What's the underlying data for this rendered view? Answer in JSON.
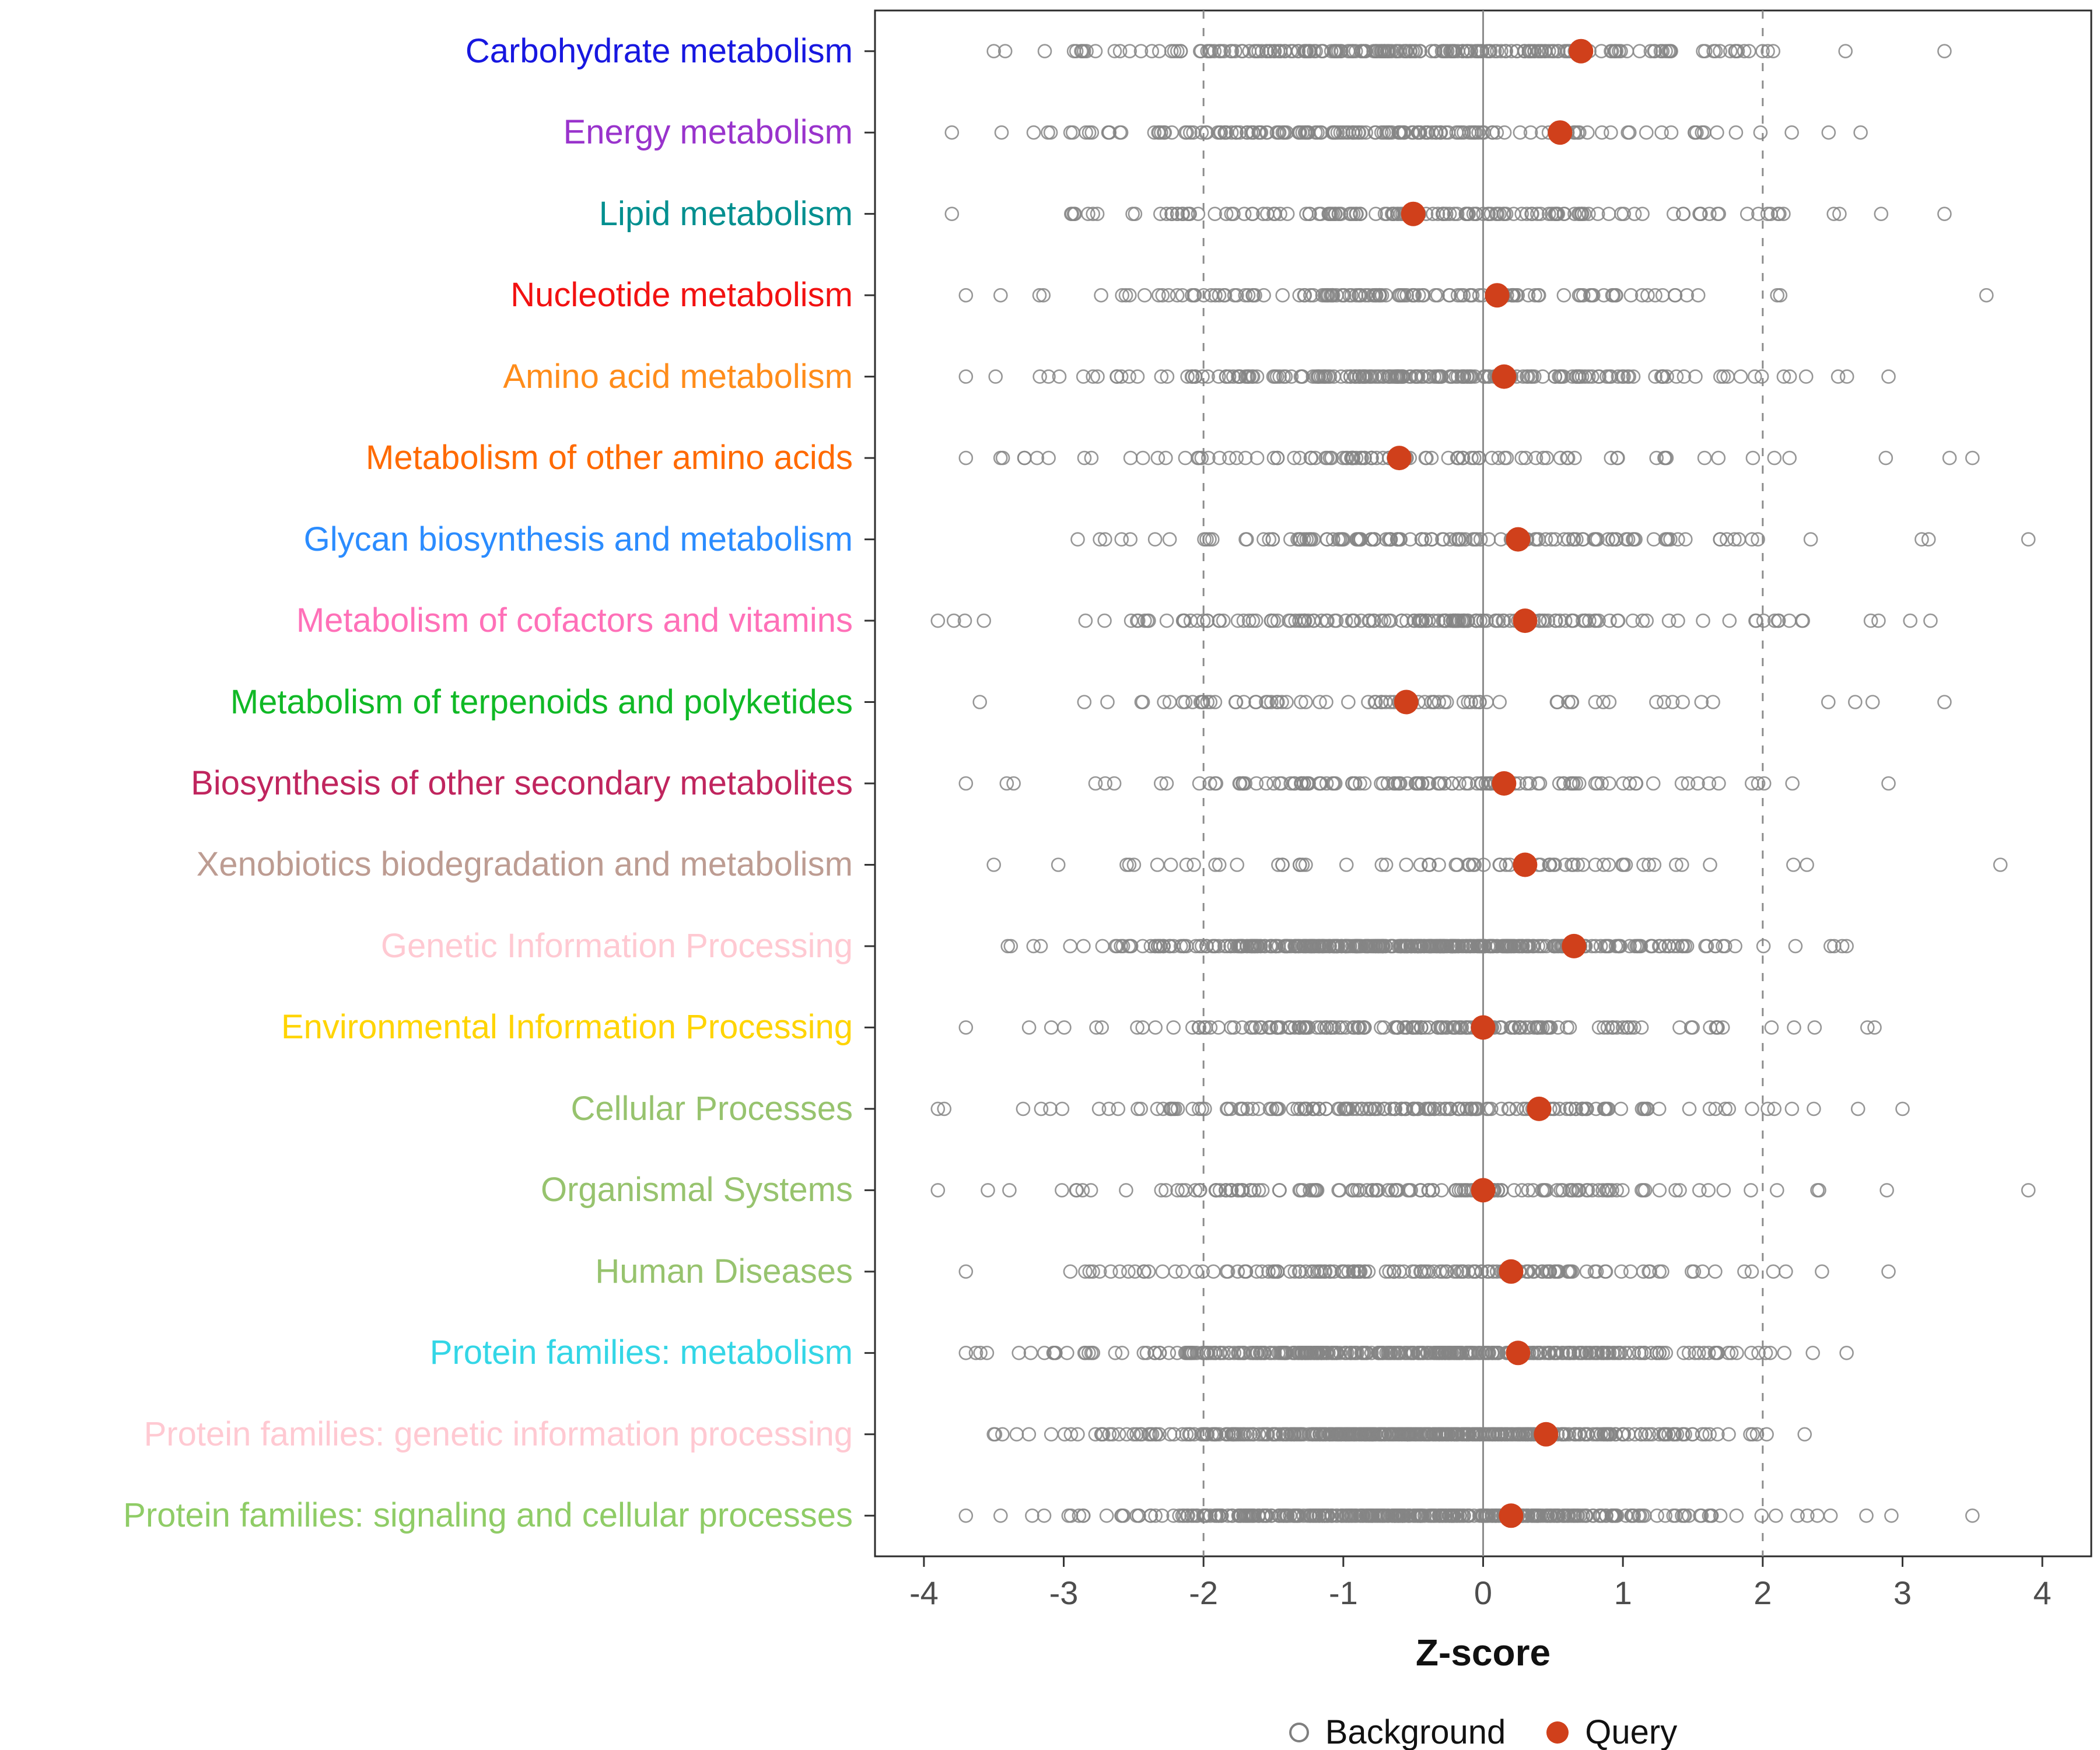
{
  "chart_data": {
    "type": "scatter",
    "title": "",
    "xlabel": "Z-score",
    "x_ticks": [
      -4,
      -3,
      -2,
      -1,
      0,
      1,
      2,
      3,
      4
    ],
    "xlim": [
      -4.35,
      4.35
    ],
    "grid": false,
    "reference_lines": {
      "solid": [
        0
      ],
      "dashed": [
        -2,
        2
      ],
      "line_color": "#8c8c8c"
    },
    "background_color": "#858585",
    "query_color": "#d0401b",
    "legend": [
      {
        "label": "Background",
        "type": "open-circle",
        "color": "#7f7f7f"
      },
      {
        "label": "Query",
        "type": "filled-circle",
        "color": "#d0401b"
      }
    ],
    "categories": [
      {
        "label": "Carbohydrate metabolism",
        "color": "#1717e0",
        "query": 0.7,
        "background": {
          "n": 230,
          "mean": -0.5,
          "sd": 1.1,
          "min": -3.5,
          "max": 3.3,
          "seed": 101
        }
      },
      {
        "label": "Energy metabolism",
        "color": "#9933cc",
        "query": 0.55,
        "background": {
          "n": 170,
          "mean": -0.7,
          "sd": 1.1,
          "min": -3.8,
          "max": 2.7,
          "seed": 102
        }
      },
      {
        "label": "Lipid metabolism",
        "color": "#008f8f",
        "query": -0.5,
        "background": {
          "n": 150,
          "mean": -0.5,
          "sd": 1.2,
          "min": -3.8,
          "max": 3.3,
          "seed": 103
        }
      },
      {
        "label": "Nucleotide metabolism",
        "color": "#f21111",
        "query": 0.1,
        "background": {
          "n": 130,
          "mean": -0.4,
          "sd": 1.2,
          "min": -3.7,
          "max": 3.6,
          "seed": 104
        }
      },
      {
        "label": "Amino acid metabolism",
        "color": "#ff8c1a",
        "query": 0.15,
        "background": {
          "n": 200,
          "mean": -0.7,
          "sd": 1.1,
          "min": -3.7,
          "max": 2.9,
          "seed": 105
        }
      },
      {
        "label": "Metabolism of other amino acids",
        "color": "#ff6a00",
        "query": -0.6,
        "background": {
          "n": 100,
          "mean": -0.7,
          "sd": 1.2,
          "min": -3.7,
          "max": 3.5,
          "seed": 106
        }
      },
      {
        "label": "Glycan biosynthesis and metabolism",
        "color": "#2b8cff",
        "query": 0.25,
        "background": {
          "n": 130,
          "mean": -0.2,
          "sd": 1.1,
          "min": -2.9,
          "max": 3.9,
          "seed": 107
        }
      },
      {
        "label": "Metabolism of cofactors and vitamins",
        "color": "#ff70b8",
        "query": 0.3,
        "background": {
          "n": 160,
          "mean": -0.5,
          "sd": 1.2,
          "min": -3.9,
          "max": 3.2,
          "seed": 108
        }
      },
      {
        "label": "Metabolism of terpenoids and polyketides",
        "color": "#10b926",
        "query": -0.55,
        "background": {
          "n": 80,
          "mean": -0.5,
          "sd": 1.3,
          "min": -3.6,
          "max": 3.3,
          "seed": 109
        }
      },
      {
        "label": "Biosynthesis of other secondary metabolites",
        "color": "#c0255e",
        "query": 0.15,
        "background": {
          "n": 120,
          "mean": -0.5,
          "sd": 1.2,
          "min": -3.7,
          "max": 2.9,
          "seed": 110
        }
      },
      {
        "label": "Xenobiotics biodegradation and metabolism",
        "color": "#bd9c92",
        "query": 0.3,
        "background": {
          "n": 65,
          "mean": -0.3,
          "sd": 1.3,
          "min": -3.5,
          "max": 3.7,
          "seed": 111
        }
      },
      {
        "label": "Genetic Information Processing",
        "color": "#ffc9d2",
        "query": 0.65,
        "background": {
          "n": 420,
          "mean": -0.55,
          "sd": 0.95,
          "min": -3.4,
          "max": 2.6,
          "seed": 112
        }
      },
      {
        "label": "Environmental Information Processing",
        "color": "#ffd400",
        "query": 0.0,
        "background": {
          "n": 170,
          "mean": -0.5,
          "sd": 1.1,
          "min": -3.7,
          "max": 2.8,
          "seed": 113
        }
      },
      {
        "label": "Cellular Processes",
        "color": "#97c36e",
        "query": 0.4,
        "background": {
          "n": 170,
          "mean": -0.5,
          "sd": 1.15,
          "min": -3.9,
          "max": 3.0,
          "seed": 114
        }
      },
      {
        "label": "Organismal Systems",
        "color": "#97c36e",
        "query": 0.0,
        "background": {
          "n": 140,
          "mean": -0.5,
          "sd": 1.2,
          "min": -3.9,
          "max": 3.9,
          "seed": 115
        }
      },
      {
        "label": "Human Diseases",
        "color": "#97c36e",
        "query": 0.2,
        "background": {
          "n": 150,
          "mean": -0.6,
          "sd": 1.15,
          "min": -3.7,
          "max": 2.9,
          "seed": 116
        }
      },
      {
        "label": "Protein families: metabolism",
        "color": "#33d6e6",
        "query": 0.25,
        "background": {
          "n": 380,
          "mean": -0.5,
          "sd": 1.05,
          "min": -3.7,
          "max": 2.6,
          "seed": 117
        }
      },
      {
        "label": "Protein families: genetic information processing",
        "color": "#ffc9d2",
        "query": 0.45,
        "background": {
          "n": 430,
          "mean": -0.5,
          "sd": 0.95,
          "min": -3.5,
          "max": 2.3,
          "seed": 118
        }
      },
      {
        "label": "Protein families: signaling and cellular processes",
        "color": "#8fcc66",
        "query": 0.2,
        "background": {
          "n": 430,
          "mean": -0.5,
          "sd": 1.05,
          "min": -3.7,
          "max": 3.5,
          "seed": 119
        }
      }
    ]
  }
}
